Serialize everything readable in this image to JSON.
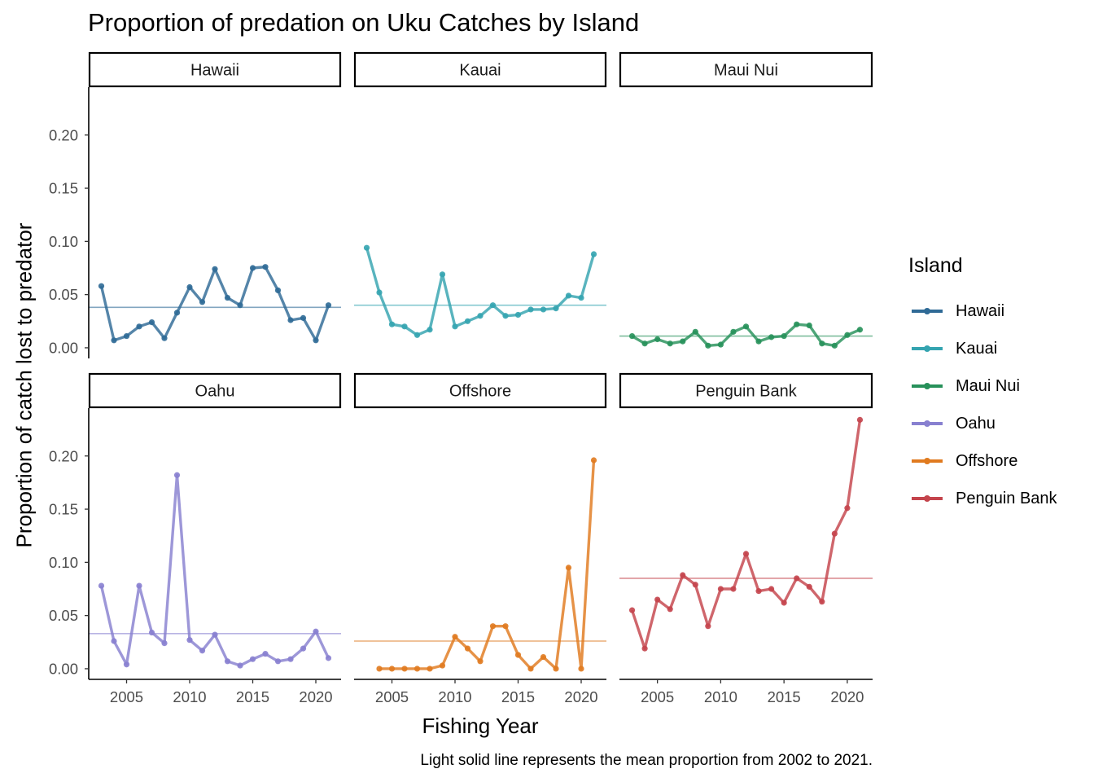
{
  "title": "Proportion of predation on Uku Catches by Island",
  "caption": "Light solid line represents the mean proportion from 2002 to 2021.",
  "chart_data": {
    "type": "line",
    "title": "Proportion of predation on Uku Catches by Island",
    "xlabel": "Fishing Year",
    "ylabel": "Proportion of catch lost to predator",
    "legend_title": "Island",
    "legend_position": "right",
    "grid": false,
    "facets": "2x3",
    "xlim": [
      2002,
      2022
    ],
    "ylim": [
      -0.01,
      0.245
    ],
    "x_ticks": [
      2005,
      2010,
      2015,
      2020
    ],
    "y_ticks": [
      0.0,
      0.05,
      0.1,
      0.15,
      0.2
    ],
    "x": [
      2003,
      2004,
      2005,
      2006,
      2007,
      2008,
      2009,
      2010,
      2011,
      2012,
      2013,
      2014,
      2015,
      2016,
      2017,
      2018,
      2019,
      2020,
      2021
    ],
    "series": [
      {
        "name": "Hawaii",
        "color": "#2f6a96",
        "mean": 0.038,
        "values": [
          0.058,
          0.007,
          0.011,
          0.02,
          0.024,
          0.009,
          0.033,
          0.057,
          0.043,
          0.074,
          0.047,
          0.04,
          0.075,
          0.076,
          0.054,
          0.026,
          0.028,
          0.007,
          0.04
        ]
      },
      {
        "name": "Kauai",
        "color": "#34a4b0",
        "mean": 0.04,
        "values": [
          0.094,
          0.052,
          0.022,
          0.02,
          0.012,
          0.017,
          0.069,
          0.02,
          0.025,
          0.03,
          0.04,
          0.03,
          0.031,
          0.036,
          0.036,
          0.037,
          0.049,
          0.047,
          0.088
        ]
      },
      {
        "name": "Maui Nui",
        "color": "#27915a",
        "mean": 0.011,
        "values": [
          0.011,
          0.004,
          0.008,
          0.004,
          0.006,
          0.015,
          0.002,
          0.003,
          0.015,
          0.02,
          0.006,
          0.01,
          0.011,
          0.022,
          0.021,
          0.004,
          0.002,
          0.012,
          0.017
        ]
      },
      {
        "name": "Oahu",
        "color": "#8880d0",
        "mean": 0.033,
        "values": [
          0.078,
          0.026,
          0.004,
          0.078,
          0.034,
          0.024,
          0.182,
          0.027,
          0.017,
          0.032,
          0.007,
          0.003,
          0.009,
          0.014,
          0.007,
          0.009,
          0.019,
          0.035,
          0.01
        ]
      },
      {
        "name": "Offshore",
        "color": "#e07a1f",
        "mean": 0.026,
        "values": [
          null,
          0.0,
          0.0,
          0.0,
          0.0,
          0.0,
          0.003,
          0.03,
          0.019,
          0.007,
          0.04,
          0.04,
          0.013,
          0.0,
          0.011,
          0.0,
          0.095,
          0.0,
          0.196
        ]
      },
      {
        "name": "Penguin Bank",
        "color": "#c4444c",
        "mean": 0.085,
        "values": [
          0.055,
          0.019,
          0.065,
          0.056,
          0.088,
          0.079,
          0.04,
          0.075,
          0.075,
          0.108,
          0.073,
          0.075,
          0.062,
          0.085,
          0.077,
          0.063,
          0.127,
          0.151,
          0.234
        ]
      }
    ]
  }
}
